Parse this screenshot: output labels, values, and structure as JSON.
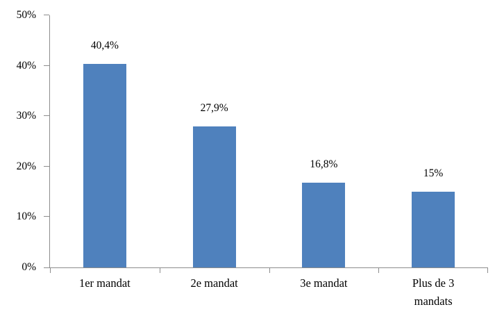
{
  "chart_data": {
    "type": "bar",
    "title": "",
    "xlabel": "",
    "ylabel": "",
    "categories": [
      "1er mandat",
      "2e mandat",
      "3e mandat",
      "Plus de 3\nmandats"
    ],
    "values": [
      40.4,
      27.9,
      16.8,
      15
    ],
    "value_labels": [
      "40,4%",
      "27,9%",
      "16,8%",
      "15%"
    ],
    "ylim": [
      0,
      50
    ],
    "y_tick_values": [
      0,
      10,
      20,
      30,
      40,
      50
    ],
    "y_tick_labels": [
      "0%",
      "10%",
      "20%",
      "30%",
      "40%",
      "50%"
    ],
    "grid": false,
    "legend_position": "none",
    "bar_color": "#4F81BD",
    "axis_color": "#8C8C8C",
    "text_color": "#000000",
    "background_color": "#FFFFFF"
  }
}
